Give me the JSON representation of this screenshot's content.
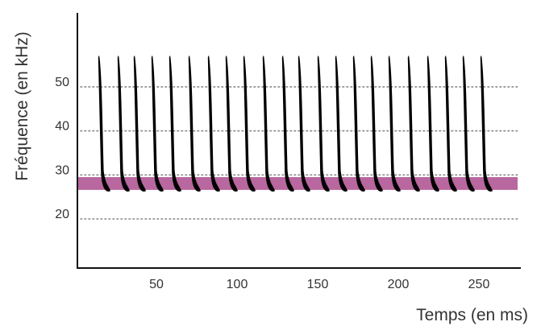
{
  "chart_data": {
    "type": "line",
    "title": "",
    "xlabel": "Temps (en ms)",
    "ylabel": "Fréquence (en kHz)",
    "xlim": [
      0,
      270
    ],
    "ylim": [
      10,
      62
    ],
    "x_ticks": [
      {
        "value": 50,
        "label": "50"
      },
      {
        "value": 100,
        "label": "100"
      },
      {
        "value": 150,
        "label": "150"
      },
      {
        "value": 200,
        "label": "200"
      },
      {
        "value": 250,
        "label": "250"
      }
    ],
    "y_ticks": [
      {
        "value": 20,
        "label": "20"
      },
      {
        "value": 30,
        "label": "30"
      },
      {
        "value": 40,
        "label": "40"
      },
      {
        "value": 50,
        "label": "50"
      }
    ],
    "grid": "dotted horizontal at y ticks",
    "band": {
      "y_from": 26.6,
      "y_to": 29.5,
      "color": "#b8679f"
    },
    "call": {
      "start_freq": 57,
      "end_freq": 27.5,
      "duration_ms": 5,
      "color": "#000000"
    },
    "pulse_times": [
      14,
      26,
      36,
      47,
      58,
      70,
      82,
      93,
      104,
      116,
      128,
      138,
      150,
      161,
      172,
      183,
      194,
      206,
      218,
      229,
      240,
      251
    ]
  }
}
